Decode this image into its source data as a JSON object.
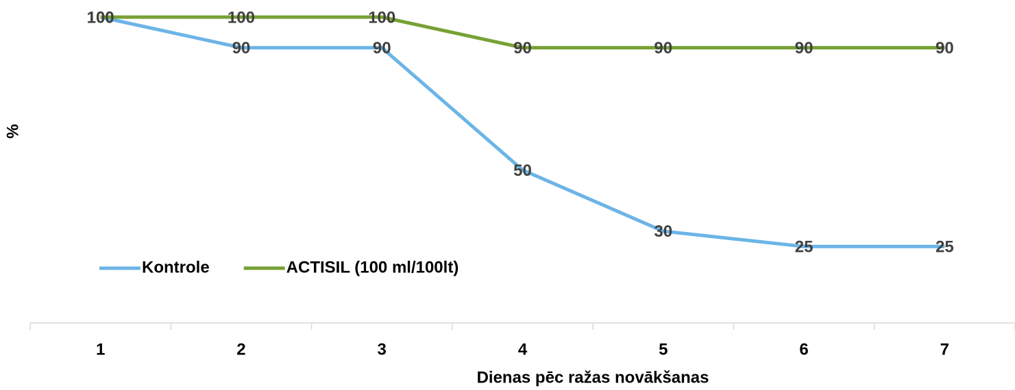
{
  "chart_data": {
    "type": "line",
    "x_label": "Dienas pēc ražas novākšanas",
    "y_label": "%",
    "categories": [
      "1",
      "2",
      "3",
      "4",
      "5",
      "6",
      "7"
    ],
    "series": [
      {
        "name": "Kontrole",
        "color": "#6cb4e6",
        "values": [
          100,
          90,
          90,
          50,
          30,
          25,
          25
        ]
      },
      {
        "name": "ACTISIL (100 ml/100lt)",
        "color": "#77a135",
        "values": [
          100,
          100,
          100,
          90,
          90,
          90,
          90
        ]
      }
    ],
    "ylim": [
      0,
      100
    ],
    "legend": "bottom-left",
    "grid": false
  }
}
